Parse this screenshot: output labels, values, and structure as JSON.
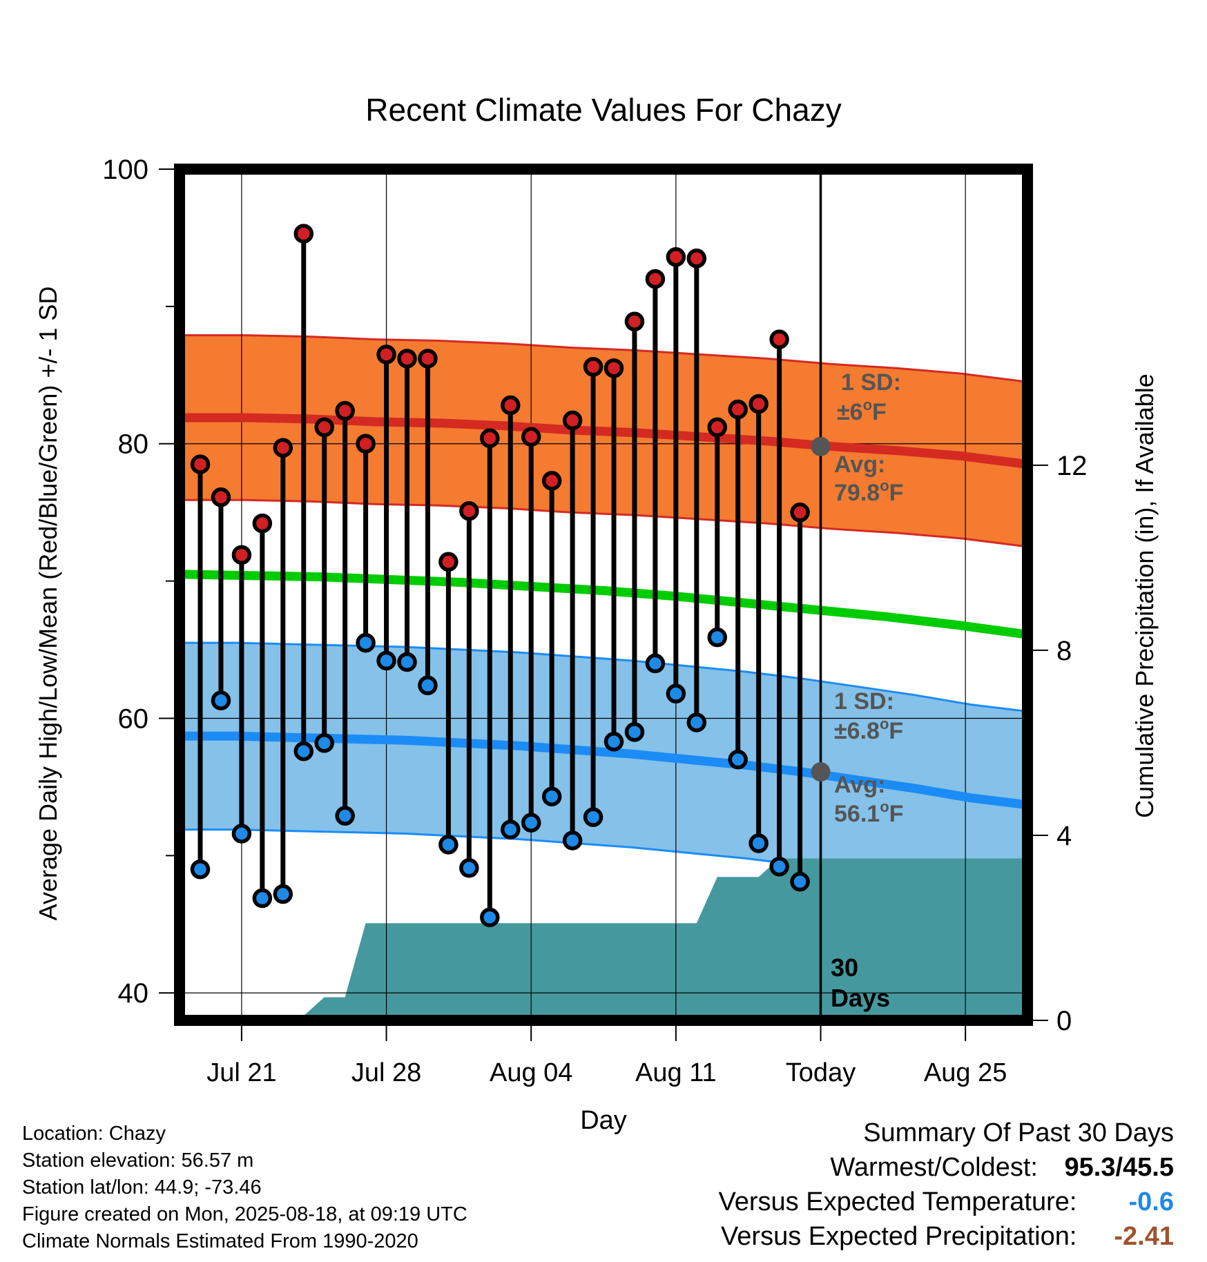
{
  "chart_data": {
    "type": "line",
    "title": "Recent Climate Values For Chazy",
    "xlabel": "Day",
    "ylabel": "Average Daily High/Low/Mean (Red/Blue/Green) +/- 1 SD",
    "y2label": "Cumulative Precipitation (in), If Available",
    "ylim": [
      38,
      100
    ],
    "y2lim": [
      0,
      18.4
    ],
    "yticks": [
      "100",
      "80",
      "60",
      "40"
    ],
    "y2ticks": [
      "12",
      "8",
      "4",
      "0"
    ],
    "xticks": [
      "Jul 21",
      "Jul 28",
      "Aug 04",
      "Aug 11",
      "Today",
      "Aug 25"
    ],
    "grid": true,
    "days": [
      "Jul 19",
      "Jul 20",
      "Jul 21",
      "Jul 22",
      "Jul 23",
      "Jul 24",
      "Jul 25",
      "Jul 26",
      "Jul 27",
      "Jul 28",
      "Jul 29",
      "Jul 30",
      "Jul 31",
      "Aug 01",
      "Aug 02",
      "Aug 03",
      "Aug 04",
      "Aug 05",
      "Aug 06",
      "Aug 07",
      "Aug 08",
      "Aug 09",
      "Aug 10",
      "Aug 11",
      "Aug 12",
      "Aug 13",
      "Aug 14",
      "Aug 15",
      "Aug 16",
      "Aug 17"
    ],
    "series": [
      {
        "name": "Daily High",
        "values": [
          78.5,
          76.1,
          71.9,
          74.2,
          79.7,
          95.3,
          81.2,
          82.4,
          80.0,
          86.5,
          86.2,
          86.2,
          71.4,
          75.1,
          80.4,
          82.8,
          80.5,
          77.3,
          81.7,
          85.6,
          85.5,
          88.9,
          92.0,
          93.6,
          93.5,
          81.2,
          82.5,
          82.9,
          87.6,
          75.0
        ]
      },
      {
        "name": "Daily Low",
        "values": [
          49.0,
          61.3,
          51.6,
          46.9,
          47.2,
          57.6,
          58.2,
          52.9,
          65.5,
          64.2,
          64.1,
          62.4,
          50.8,
          49.1,
          45.5,
          51.9,
          52.4,
          54.3,
          51.1,
          52.8,
          58.3,
          59.0,
          64.0,
          61.8,
          59.7,
          65.9,
          57.0,
          50.9,
          49.2,
          48.1
        ]
      }
    ],
    "normals": {
      "high_avg": [
        81.9,
        81.9,
        81.8,
        81.6,
        81.5,
        81.3,
        81.0,
        80.8,
        80.5,
        80.2,
        79.8,
        79.5,
        79.1,
        78.5
      ],
      "high_sd": 6,
      "low_avg": [
        58.7,
        58.7,
        58.6,
        58.5,
        58.4,
        58.2,
        58.0,
        57.7,
        57.4,
        57.0,
        56.6,
        56.1,
        55.5,
        54.9,
        54.2,
        53.7
      ],
      "low_sd": 6.8,
      "mean_avg": [
        70.5,
        70.4,
        70.3,
        70.1,
        69.9,
        69.6,
        69.3,
        68.9,
        68.4,
        67.9,
        67.4,
        66.8,
        66.1
      ]
    },
    "precip_cumulative": [
      0,
      0,
      0,
      0,
      0,
      0.1,
      0.5,
      0.5,
      2.1,
      2.1,
      2.1,
      2.1,
      2.1,
      2.1,
      2.1,
      2.1,
      2.1,
      2.1,
      2.1,
      2.1,
      2.1,
      2.1,
      2.1,
      2.1,
      2.1,
      3.1,
      3.1,
      3.1,
      3.5,
      3.5
    ],
    "annotations": {
      "high_sd_line1": "1 SD:",
      "high_sd_line2": "±6",
      "high_avg_line1": "Avg:",
      "high_avg_line2": "79.8",
      "low_sd_line1": "1 SD:",
      "low_sd_line2": "±6.8",
      "low_avg_line1": "Avg:",
      "low_avg_line2": "56.1",
      "degree": "o",
      "unit": "F",
      "days_line1": "30",
      "days_line2": "Days"
    },
    "colors": {
      "high_band": "#f47b30",
      "high_line": "#d42a22",
      "low_band": "#85c1e8",
      "low_line": "#1b8cf6",
      "mean_line": "#00cc00",
      "precip": "#45999e",
      "high_marker": "#d11f24",
      "low_marker": "#1d8ae8",
      "today_marker": "#555555"
    }
  },
  "info": {
    "location": "Location: Chazy",
    "elevation": "Station elevation: 56.57 m",
    "latlon": "Station lat/lon: 44.9; -73.46",
    "created": "Figure created on Mon, 2025-08-18, at 09:19 UTC",
    "normals": "Climate Normals Estimated From 1990-2020"
  },
  "summary": {
    "title": "Summary Of Past 30 Days",
    "warmest_label": "Warmest/Coldest:",
    "warmest_value": "95.3/45.5",
    "temp_label": "Versus Expected Temperature:",
    "temp_value": "-0.6",
    "temp_color": "#1d8ae8",
    "precip_label": "Versus Expected Precipitation:",
    "precip_value": "-2.41",
    "precip_color": "#a0522d"
  }
}
